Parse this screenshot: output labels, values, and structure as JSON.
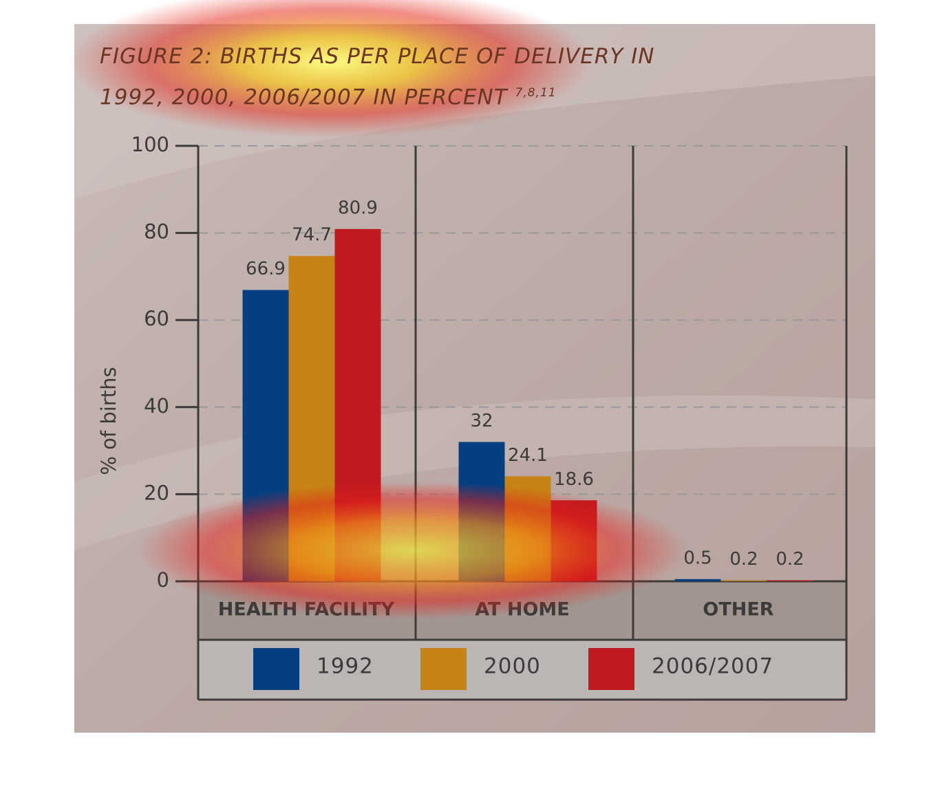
{
  "chart_data": {
    "type": "bar",
    "title": "FIGURE 2: BIRTHS AS PER PLACE OF DELIVERY IN 1992, 2000, 2006/2007 IN PERCENT",
    "title_superscript": "7,8,11",
    "y_label": "% of births",
    "categories": [
      "HEALTH FACILITY",
      "AT HOME",
      "OTHER"
    ],
    "series": [
      {
        "name": "1992",
        "color": "#063f80",
        "values": [
          66.9,
          32,
          0.5
        ]
      },
      {
        "name": "2000",
        "color": "#c68214",
        "values": [
          74.7,
          24.1,
          0.2
        ]
      },
      {
        "name": "2006/2007",
        "color": "#bf1a1f",
        "values": [
          80.9,
          18.6,
          0.2
        ]
      }
    ],
    "ylim": [
      0,
      100
    ],
    "yticks": [
      0,
      20,
      40,
      60,
      80,
      100
    ],
    "grid": true,
    "legend": "bottom"
  }
}
